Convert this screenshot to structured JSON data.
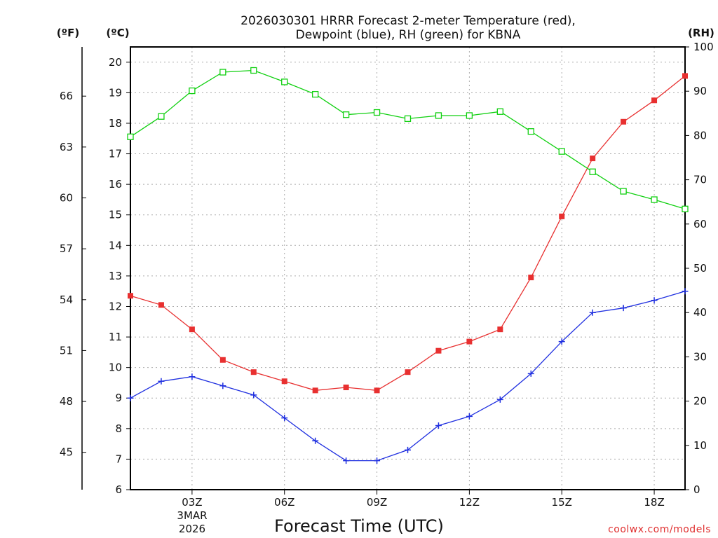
{
  "chart_data": {
    "type": "line",
    "title_line1": "2026030301 HRRR Forecast 2-meter Temperature (red),",
    "title_line2": "Dewpoint (blue), RH (green) for KBNA",
    "xlabel": "Forecast Time (UTC)",
    "unit_f": "(ºF)",
    "unit_c": "(ºC)",
    "unit_rh": "(RH)",
    "credit": "coolwx.com/models",
    "date_label_1": "3MAR",
    "date_label_2": "2026",
    "x_hours": [
      1,
      2,
      3,
      4,
      5,
      6,
      7,
      8,
      9,
      10,
      11,
      12,
      13,
      14,
      15,
      16,
      17,
      18,
      19
    ],
    "xlim": [
      1,
      19
    ],
    "x_ticks": [
      {
        "hour": 3,
        "label": "03Z"
      },
      {
        "hour": 6,
        "label": "06Z"
      },
      {
        "hour": 9,
        "label": "09Z"
      },
      {
        "hour": 12,
        "label": "12Z"
      },
      {
        "hour": 15,
        "label": "15Z"
      },
      {
        "hour": 18,
        "label": "18Z"
      }
    ],
    "y_celsius": {
      "min": 6,
      "max": 20.5,
      "ticks": [
        "6",
        "7",
        "8",
        "9",
        "10",
        "11",
        "12",
        "13",
        "14",
        "15",
        "16",
        "17",
        "18",
        "19",
        "20"
      ]
    },
    "y_fahrenheit": {
      "ticks": [
        "45",
        "48",
        "51",
        "54",
        "57",
        "60",
        "63",
        "66"
      ]
    },
    "y_rh": {
      "min": 0,
      "max": 100,
      "ticks": [
        "0",
        "10",
        "20",
        "30",
        "40",
        "50",
        "60",
        "70",
        "80",
        "90",
        "100"
      ]
    },
    "series": [
      {
        "name": "Temperature",
        "axis": "celsius",
        "color": "#e83030",
        "marker": "filled-square",
        "values": [
          12.35,
          12.05,
          11.25,
          10.25,
          9.85,
          9.55,
          9.25,
          9.35,
          9.25,
          9.85,
          10.55,
          10.85,
          11.25,
          12.95,
          14.95,
          16.85,
          18.05,
          18.75,
          19.55
        ]
      },
      {
        "name": "Dewpoint",
        "axis": "celsius",
        "color": "#2030e0",
        "marker": "plus",
        "values": [
          9.0,
          9.55,
          9.7,
          9.4,
          9.1,
          8.35,
          7.6,
          6.95,
          6.95,
          7.3,
          8.1,
          8.4,
          8.95,
          9.8,
          10.85,
          11.8,
          11.95,
          12.2,
          12.5
        ]
      },
      {
        "name": "RH",
        "axis": "rh",
        "color": "#10d010",
        "marker": "open-square",
        "values": [
          79.7,
          84.3,
          90.1,
          94.3,
          94.7,
          92.1,
          89.3,
          84.7,
          85.2,
          83.8,
          84.5,
          84.5,
          85.4,
          80.9,
          76.4,
          71.8,
          67.4,
          65.5,
          63.4
        ]
      }
    ]
  }
}
